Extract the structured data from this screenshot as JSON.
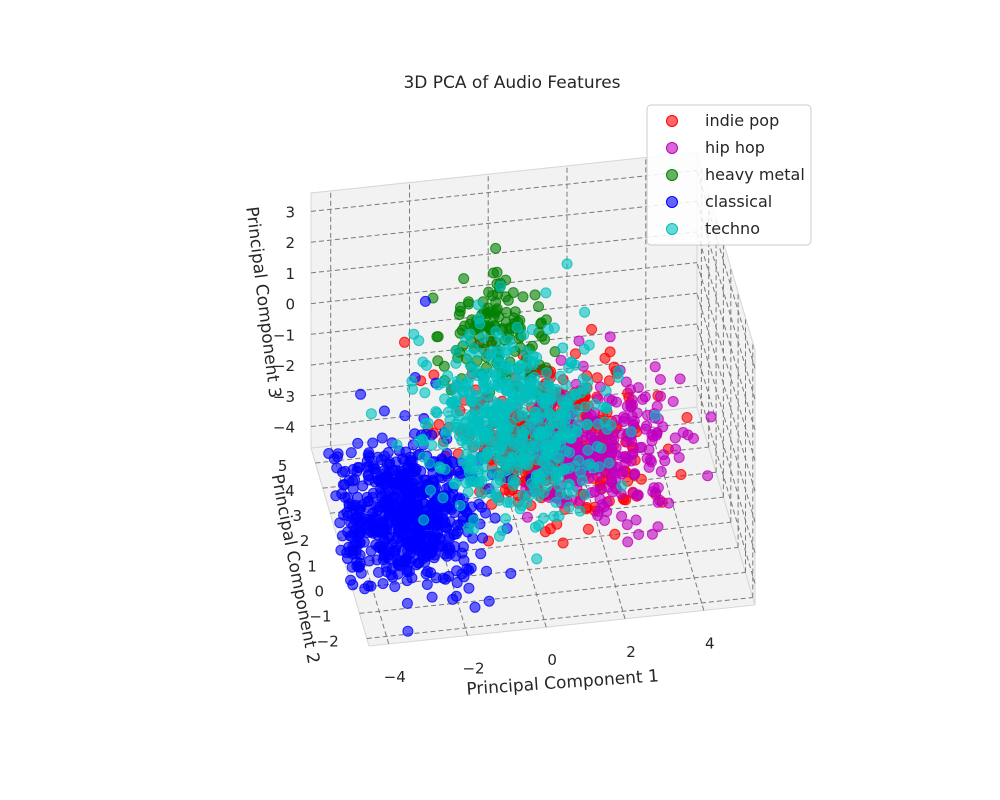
{
  "chart_data": {
    "type": "scatter",
    "projection": "3d",
    "title": "3D PCA of Audio Features",
    "xlabel": "Principal Component 1",
    "ylabel": "Principal Component 2",
    "zlabel": "Principal Component 3",
    "x_ticks": [
      "−4",
      "−2",
      "0",
      "2",
      "4"
    ],
    "y_ticks": [
      "−2",
      "−1",
      "0",
      "1",
      "2",
      "3",
      "4",
      "5"
    ],
    "z_ticks": [
      "−4",
      "−3",
      "−2",
      "−1",
      "0",
      "1",
      "2",
      "3"
    ],
    "xlim": [
      -4.5,
      5.3
    ],
    "ylim": [
      -2.3,
      5.6
    ],
    "zlim": [
      -4.7,
      3.6
    ],
    "grid": true,
    "legend_position": "top-right",
    "series": [
      {
        "name": "indie pop",
        "color": "#ff0000",
        "centroid": [
          0.9,
          1.6,
          -1.9
        ],
        "spread": [
          1.1,
          1.0,
          0.9
        ],
        "point_count": 450,
        "outliers": [
          [
            -2.5,
            3.6,
            0.1
          ],
          [
            -2.2,
            3.0,
            -0.7
          ],
          [
            2.9,
            0.3,
            -2.4
          ],
          [
            -1.0,
            0.2,
            -3.8
          ],
          [
            3.6,
            1.8,
            -1.0
          ],
          [
            0.8,
            -0.3,
            -3.7
          ]
        ]
      },
      {
        "name": "hip hop",
        "color": "#bf00bf",
        "centroid": [
          2.1,
          1.2,
          -2.1
        ],
        "spread": [
          0.9,
          1.0,
          0.8
        ],
        "point_count": 250,
        "outliers": [
          [
            4.8,
            1.0,
            -1.2
          ],
          [
            4.2,
            2.0,
            -0.7
          ],
          [
            3.8,
            0.8,
            -0.4
          ],
          [
            4.6,
            0.4,
            -2.6
          ],
          [
            2.7,
            -0.4,
            -3.6
          ]
        ]
      },
      {
        "name": "heavy metal",
        "color": "#008000",
        "centroid": [
          -0.3,
          3.2,
          0.6
        ],
        "spread": [
          0.6,
          0.7,
          0.7
        ],
        "point_count": 130,
        "outliers": [
          [
            0.0,
            4.6,
            2.0
          ],
          [
            -1.1,
            3.5,
            1.0
          ],
          [
            -0.8,
            2.3,
            -0.1
          ],
          [
            0.6,
            2.8,
            0.2
          ]
        ]
      },
      {
        "name": "classical",
        "color": "#0000ff",
        "centroid": [
          -3.0,
          0.8,
          -3.2
        ],
        "spread": [
          0.9,
          0.9,
          0.9
        ],
        "point_count": 650,
        "outliers": [
          [
            -1.8,
            4.5,
            0.6
          ],
          [
            -3.8,
            2.6,
            -0.6
          ],
          [
            -4.4,
            -0.1,
            -3.9
          ],
          [
            -1.2,
            -0.6,
            -4.1
          ],
          [
            -2.6,
            1.6,
            0.6
          ],
          [
            -3.4,
            1.5,
            -0.3
          ]
        ]
      },
      {
        "name": "techno",
        "color": "#00bfbf",
        "centroid": [
          0.0,
          1.9,
          -1.5
        ],
        "spread": [
          1.1,
          1.1,
          1.0
        ],
        "point_count": 550,
        "outliers": [
          [
            -2.3,
            3.4,
            0.5
          ],
          [
            1.2,
            1.9,
            0.8
          ],
          [
            -1.3,
            0.6,
            -3.4
          ],
          [
            1.6,
            1.0,
            -3.3
          ],
          [
            -0.7,
            3.2,
            1.4
          ]
        ]
      }
    ]
  }
}
